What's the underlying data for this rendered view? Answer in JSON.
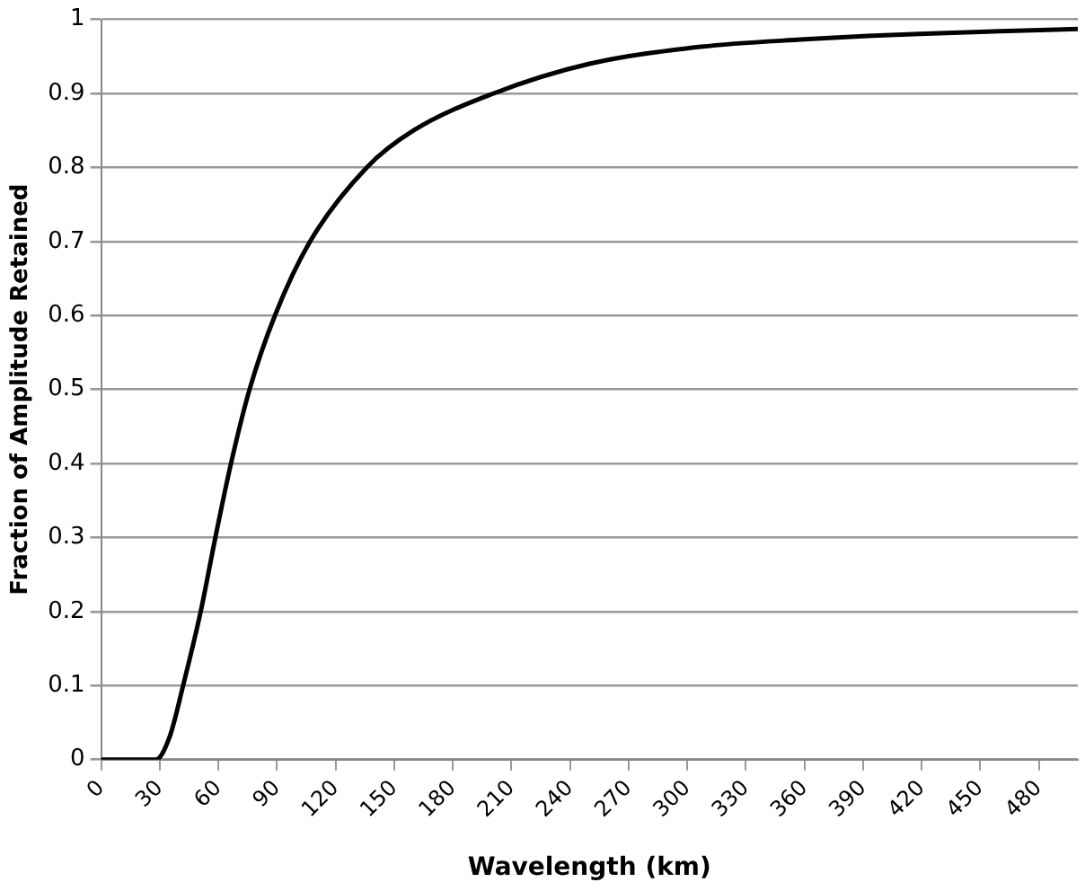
{
  "chart_data": {
    "type": "line",
    "xlabel": "Wavelength (km)",
    "ylabel": "Fraction of Amplitude Retained",
    "x": [
      0,
      20,
      28,
      35,
      42,
      51,
      58.5,
      66.5,
      76,
      89,
      107,
      136,
      160,
      201,
      250,
      307,
      360,
      404,
      460,
      500
    ],
    "values": [
      0,
      0,
      0,
      0.03,
      0.1,
      0.2,
      0.3,
      0.4,
      0.5,
      0.6,
      0.7,
      0.8,
      0.85,
      0.9,
      0.94,
      0.963,
      0.973,
      0.979,
      0.984,
      0.987
    ],
    "color": "#000000",
    "xlim": [
      0,
      500
    ],
    "xticks": [
      0,
      30,
      60,
      90,
      120,
      150,
      180,
      210,
      240,
      270,
      300,
      330,
      360,
      390,
      420,
      450,
      480
    ],
    "ylim": [
      0,
      1
    ],
    "yticks": [
      0,
      0.1,
      0.2,
      0.3,
      0.4,
      0.5,
      0.6,
      0.7,
      0.8,
      0.9,
      1
    ],
    "grid": "y",
    "marker": "none",
    "line_style": "solid",
    "legend": false
  }
}
